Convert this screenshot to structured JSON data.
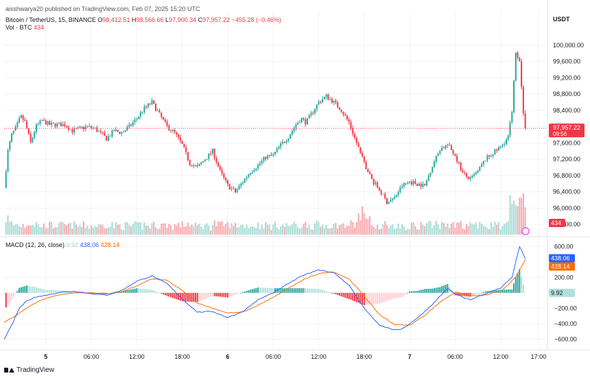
{
  "header": {
    "publisher_line": "aisshwarya20 published on TradingView.com, Feb 07, 2025 15:20 UTC"
  },
  "legend": {
    "symbol": "Bitcoin / TetherUS, 15, BINANCE",
    "open_label": "O",
    "open": "98,412.51",
    "high_label": "H",
    "high": "98,566.66",
    "low_label": "L",
    "low": "97,900.34",
    "close_label": "C",
    "close": "97,957.22",
    "change": "−455.28 (−0.46%)",
    "vol_label": "Vol · BTC",
    "vol": "434"
  },
  "macd_legend": {
    "label": "MACD (12, 26, close)",
    "hist": "9.92",
    "macd": "438.06",
    "signal": "428.14"
  },
  "footer": {
    "brand": "TradingView"
  },
  "colors": {
    "up": "#26a69a",
    "down": "#f23645",
    "vol_up": "#a6dbd4",
    "vol_down": "#f6a9ad",
    "macd": "#2962ff",
    "signal": "#ff6d00",
    "grid": "#f0f3fa"
  },
  "chart_data": [
    {
      "type": "candlestick",
      "title": "Bitcoin / TetherUS, 15, BINANCE",
      "currency": "USDT",
      "y_ticks": [
        "100,000.00",
        "99,600.00",
        "99,200.00",
        "98,800.00",
        "98,400.00",
        "98,000.00",
        "97,600.00",
        "97,200.00",
        "96,800.00",
        "96,400.00",
        "96,000.00",
        "95,600.00"
      ],
      "ylim": [
        95350,
        100350
      ],
      "x_ticks": [
        "5",
        "06:00",
        "12:00",
        "18:00",
        "6",
        "06:00",
        "12:00",
        "18:00",
        "7",
        "06:00",
        "12:00",
        "17:00"
      ],
      "x_tick_hours": [
        24,
        30,
        36,
        42,
        48,
        54,
        60,
        66,
        72,
        78,
        84,
        89
      ],
      "last_price": "97,957.22",
      "countdown": "09:56",
      "current_volume": "434",
      "price_path": [
        {
          "t": 18.5,
          "p": 96500
        },
        {
          "t": 19,
          "p": 97400
        },
        {
          "t": 19.5,
          "p": 97800
        },
        {
          "t": 20,
          "p": 97950
        },
        {
          "t": 20.7,
          "p": 98250
        },
        {
          "t": 21.3,
          "p": 98100
        },
        {
          "t": 22,
          "p": 97600
        },
        {
          "t": 22.7,
          "p": 98000
        },
        {
          "t": 23.5,
          "p": 98150
        },
        {
          "t": 24.5,
          "p": 98050
        },
        {
          "t": 25.5,
          "p": 98050
        },
        {
          "t": 26.5,
          "p": 98050
        },
        {
          "t": 27.5,
          "p": 97900
        },
        {
          "t": 28.5,
          "p": 97950
        },
        {
          "t": 29.5,
          "p": 98000
        },
        {
          "t": 30.5,
          "p": 97950
        },
        {
          "t": 31.5,
          "p": 97800
        },
        {
          "t": 32,
          "p": 97700
        },
        {
          "t": 33,
          "p": 97900
        },
        {
          "t": 34,
          "p": 97850
        },
        {
          "t": 35,
          "p": 98000
        },
        {
          "t": 36,
          "p": 98200
        },
        {
          "t": 37,
          "p": 98450
        },
        {
          "t": 38,
          "p": 98600
        },
        {
          "t": 39,
          "p": 98300
        },
        {
          "t": 40,
          "p": 98000
        },
        {
          "t": 41,
          "p": 97850
        },
        {
          "t": 42,
          "p": 97550
        },
        {
          "t": 43,
          "p": 97100
        },
        {
          "t": 44,
          "p": 97000
        },
        {
          "t": 45,
          "p": 97200
        },
        {
          "t": 46,
          "p": 97400
        },
        {
          "t": 47,
          "p": 96900
        },
        {
          "t": 48,
          "p": 96550
        },
        {
          "t": 49,
          "p": 96400
        },
        {
          "t": 50,
          "p": 96650
        },
        {
          "t": 51,
          "p": 96900
        },
        {
          "t": 52,
          "p": 97050
        },
        {
          "t": 53,
          "p": 97250
        },
        {
          "t": 54,
          "p": 97300
        },
        {
          "t": 55,
          "p": 97550
        },
        {
          "t": 56,
          "p": 97750
        },
        {
          "t": 57,
          "p": 98050
        },
        {
          "t": 57.7,
          "p": 98200
        },
        {
          "t": 58.3,
          "p": 98100
        },
        {
          "t": 59,
          "p": 98300
        },
        {
          "t": 60,
          "p": 98600
        },
        {
          "t": 61,
          "p": 98750
        },
        {
          "t": 62,
          "p": 98600
        },
        {
          "t": 63,
          "p": 98400
        },
        {
          "t": 64,
          "p": 98100
        },
        {
          "t": 65,
          "p": 97600
        },
        {
          "t": 66,
          "p": 97100
        },
        {
          "t": 67,
          "p": 96700
        },
        {
          "t": 68,
          "p": 96450
        },
        {
          "t": 69,
          "p": 96150
        },
        {
          "t": 70,
          "p": 96250
        },
        {
          "t": 71,
          "p": 96550
        },
        {
          "t": 72,
          "p": 96650
        },
        {
          "t": 73,
          "p": 96600
        },
        {
          "t": 74,
          "p": 96550
        },
        {
          "t": 75,
          "p": 97050
        },
        {
          "t": 76,
          "p": 97450
        },
        {
          "t": 77,
          "p": 97550
        },
        {
          "t": 78,
          "p": 97300
        },
        {
          "t": 79,
          "p": 96850
        },
        {
          "t": 80,
          "p": 96700
        },
        {
          "t": 81,
          "p": 96900
        },
        {
          "t": 82,
          "p": 97200
        },
        {
          "t": 83,
          "p": 97350
        },
        {
          "t": 84,
          "p": 97500
        },
        {
          "t": 85,
          "p": 97750
        },
        {
          "t": 85.5,
          "p": 98400
        },
        {
          "t": 86,
          "p": 99800
        },
        {
          "t": 86.5,
          "p": 99650
        },
        {
          "t": 87,
          "p": 98300
        },
        {
          "t": 87.25,
          "p": 97957
        }
      ]
    },
    {
      "type": "line",
      "title": "MACD (12, 26, close)",
      "y_ticks": [
        "600.00",
        "200.00",
        "−200.00",
        "−400.00",
        "−600.00"
      ],
      "ylim": [
        -720,
        700
      ],
      "zero_label": "9.92",
      "series": [
        {
          "name": "MACD",
          "values": [
            {
              "t": 18.5,
              "v": -600
            },
            {
              "t": 19.5,
              "v": -420
            },
            {
              "t": 20.5,
              "v": -200
            },
            {
              "t": 21.5,
              "v": -100
            },
            {
              "t": 22.5,
              "v": -60
            },
            {
              "t": 24,
              "v": -30
            },
            {
              "t": 26,
              "v": 10
            },
            {
              "t": 28,
              "v": 20
            },
            {
              "t": 30,
              "v": -10
            },
            {
              "t": 32,
              "v": -30
            },
            {
              "t": 34,
              "v": 30
            },
            {
              "t": 36,
              "v": 150
            },
            {
              "t": 38,
              "v": 220
            },
            {
              "t": 40,
              "v": 120
            },
            {
              "t": 42,
              "v": -80
            },
            {
              "t": 44,
              "v": -250
            },
            {
              "t": 46,
              "v": -240
            },
            {
              "t": 48,
              "v": -320
            },
            {
              "t": 50,
              "v": -240
            },
            {
              "t": 52,
              "v": -90
            },
            {
              "t": 54,
              "v": 0
            },
            {
              "t": 56,
              "v": 120
            },
            {
              "t": 58,
              "v": 230
            },
            {
              "t": 60,
              "v": 300
            },
            {
              "t": 62,
              "v": 260
            },
            {
              "t": 64,
              "v": 100
            },
            {
              "t": 66,
              "v": -200
            },
            {
              "t": 68,
              "v": -420
            },
            {
              "t": 70,
              "v": -480
            },
            {
              "t": 71,
              "v": -470
            },
            {
              "t": 73,
              "v": -330
            },
            {
              "t": 75,
              "v": -150
            },
            {
              "t": 77,
              "v": 60
            },
            {
              "t": 78,
              "v": -20
            },
            {
              "t": 80,
              "v": -90
            },
            {
              "t": 82,
              "v": -10
            },
            {
              "t": 84,
              "v": 60
            },
            {
              "t": 85.5,
              "v": 200
            },
            {
              "t": 86.5,
              "v": 600
            },
            {
              "t": 87.25,
              "v": 438.06
            }
          ]
        },
        {
          "name": "Signal",
          "values": [
            {
              "t": 18.5,
              "v": -380
            },
            {
              "t": 20,
              "v": -300
            },
            {
              "t": 22,
              "v": -160
            },
            {
              "t": 24,
              "v": -70
            },
            {
              "t": 26,
              "v": -20
            },
            {
              "t": 28,
              "v": 0
            },
            {
              "t": 30,
              "v": 0
            },
            {
              "t": 32,
              "v": -10
            },
            {
              "t": 34,
              "v": 10
            },
            {
              "t": 36,
              "v": 90
            },
            {
              "t": 38,
              "v": 180
            },
            {
              "t": 40,
              "v": 160
            },
            {
              "t": 42,
              "v": 30
            },
            {
              "t": 44,
              "v": -130
            },
            {
              "t": 46,
              "v": -200
            },
            {
              "t": 48,
              "v": -260
            },
            {
              "t": 50,
              "v": -250
            },
            {
              "t": 52,
              "v": -160
            },
            {
              "t": 54,
              "v": -60
            },
            {
              "t": 56,
              "v": 60
            },
            {
              "t": 58,
              "v": 170
            },
            {
              "t": 60,
              "v": 250
            },
            {
              "t": 62,
              "v": 270
            },
            {
              "t": 64,
              "v": 180
            },
            {
              "t": 66,
              "v": -40
            },
            {
              "t": 68,
              "v": -280
            },
            {
              "t": 70,
              "v": -410
            },
            {
              "t": 72,
              "v": -420
            },
            {
              "t": 74,
              "v": -290
            },
            {
              "t": 76,
              "v": -120
            },
            {
              "t": 78,
              "v": 10
            },
            {
              "t": 80,
              "v": -40
            },
            {
              "t": 82,
              "v": -30
            },
            {
              "t": 84,
              "v": 20
            },
            {
              "t": 86,
              "v": 200
            },
            {
              "t": 87.25,
              "v": 428.14
            }
          ]
        }
      ]
    }
  ]
}
